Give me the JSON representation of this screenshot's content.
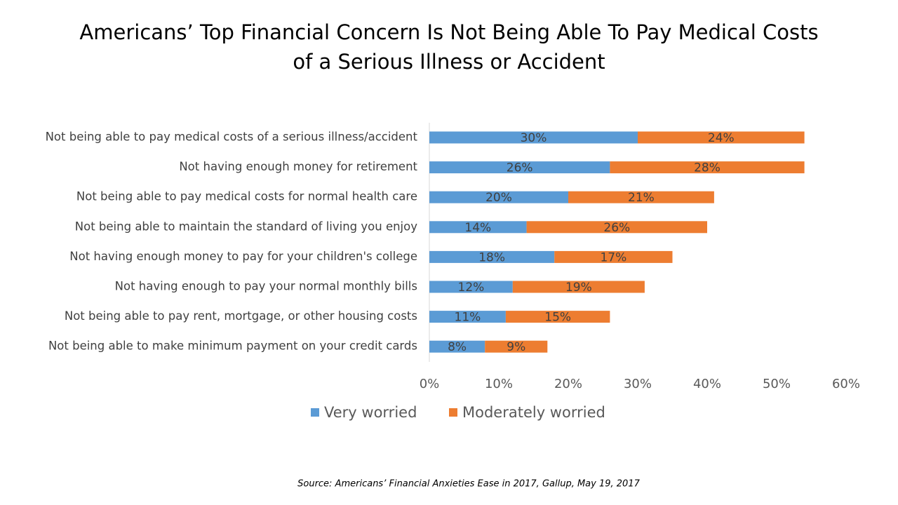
{
  "chart_data": {
    "type": "stacked-bar-horizontal",
    "title": [
      "Americans’ Top Financial Concern Is Not Being Able To Pay Medical Costs",
      "of a Serious Illness or Accident"
    ],
    "categories": [
      "Not being able to pay medical costs of a serious illness/accident",
      "Not having enough money for retirement",
      "Not being able to pay medical costs for normal health care",
      "Not being able to maintain the standard of living you enjoy",
      "Not having enough money to pay for your children's college",
      "Not having enough to pay your normal monthly bills",
      "Not being able to pay rent, mortgage, or other housing costs",
      "Not being able to make minimum payment on your credit cards"
    ],
    "series": [
      {
        "name": "Very worried",
        "color": "#5b9bd5",
        "values": [
          30,
          26,
          20,
          14,
          18,
          12,
          11,
          8
        ],
        "value_labels": [
          "30%",
          "26%",
          "20%",
          "14%",
          "18%",
          "12%",
          "11%",
          "8%"
        ]
      },
      {
        "name": "Moderately worried",
        "color": "#ed7d31",
        "values": [
          24,
          28,
          21,
          26,
          17,
          19,
          15,
          9
        ],
        "value_labels": [
          "24%",
          "28%",
          "21%",
          "26%",
          "17%",
          "19%",
          "15%",
          "9%"
        ]
      }
    ],
    "xlim": [
      0,
      60
    ],
    "xticks": [
      {
        "value": 0,
        "label": "0%"
      },
      {
        "value": 10,
        "label": "10%"
      },
      {
        "value": 20,
        "label": "20%"
      },
      {
        "value": 30,
        "label": "30%"
      },
      {
        "value": 40,
        "label": "40%"
      },
      {
        "value": 50,
        "label": "50%"
      },
      {
        "value": 60,
        "label": "60%"
      }
    ],
    "grid": false,
    "legend": "bottom",
    "source": "Source: Americans’ Financial Anxieties Ease in 2017, Gallup, May 19, 2017"
  }
}
